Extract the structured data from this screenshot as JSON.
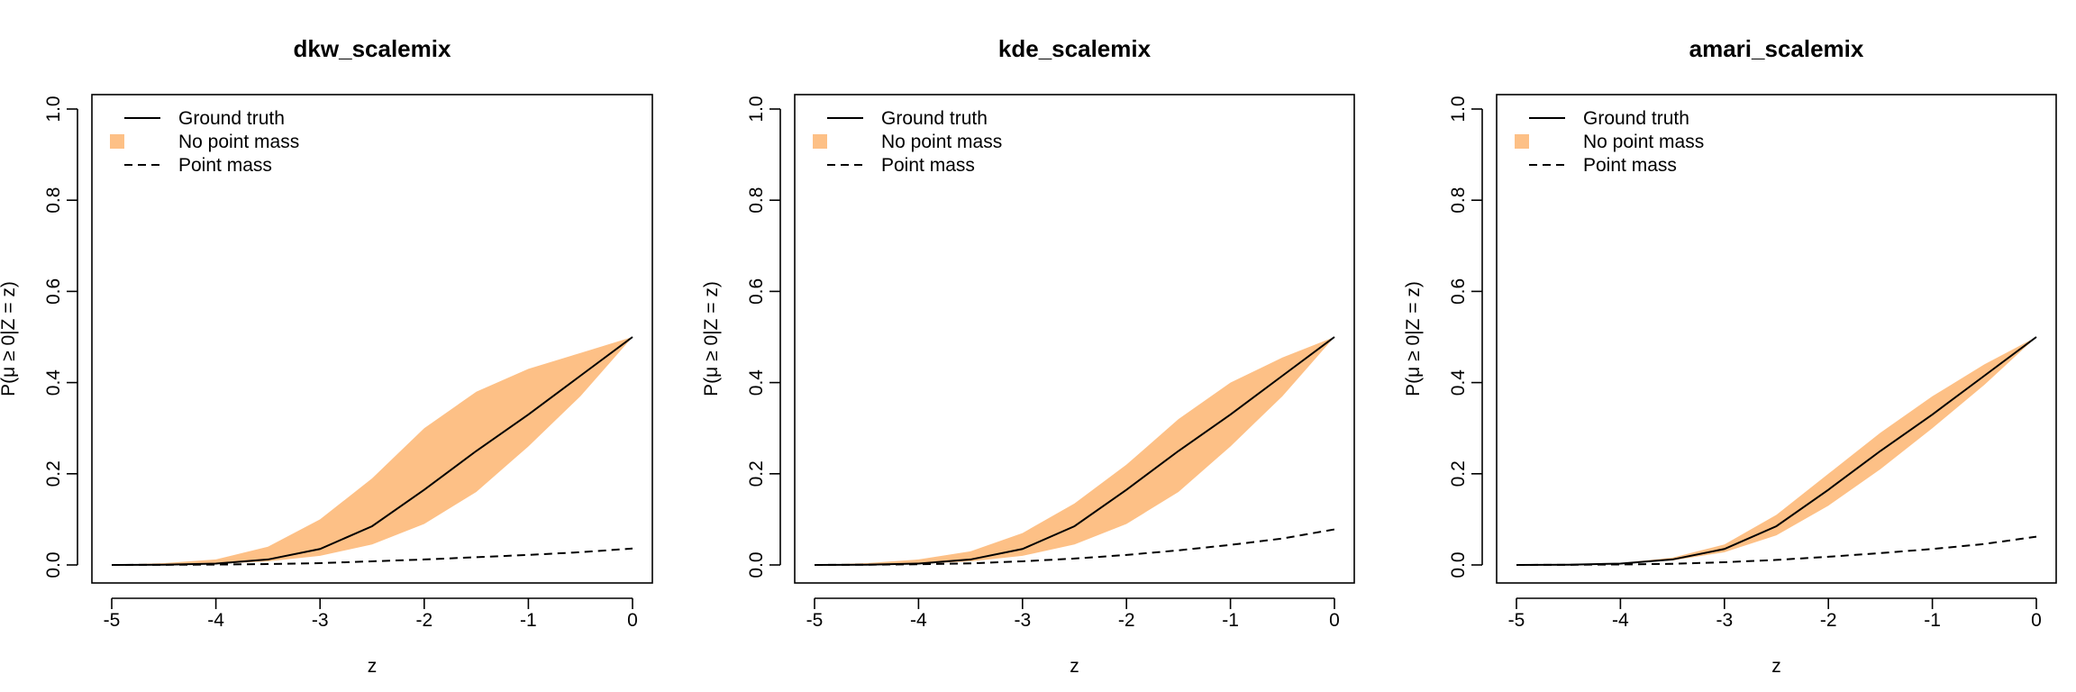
{
  "figure": {
    "colors": {
      "band": "#fdc086",
      "line": "#000000",
      "background": "#ffffff"
    },
    "legend_entries": [
      "Ground truth",
      "No point mass",
      "Point mass"
    ]
  },
  "chart_data": [
    {
      "type": "line",
      "title": "dkw_scalemix",
      "xlabel": "z",
      "ylabel": "P(μ ≥ 0|Z = z)",
      "xlim": [
        -5,
        0
      ],
      "ylim": [
        0,
        1
      ],
      "xticks": [
        -5,
        -4,
        -3,
        -2,
        -1,
        0
      ],
      "yticks": [
        "0.0",
        "0.2",
        "0.4",
        "0.6",
        "0.8",
        "1.0"
      ],
      "grid": false,
      "legend_position": "top-left",
      "x": [
        -5,
        -4.5,
        -4,
        -3.5,
        -3,
        -2.5,
        -2,
        -1.5,
        -1,
        -0.5,
        0
      ],
      "series": [
        {
          "name": "Ground truth",
          "style": "solid",
          "values": [
            0,
            0.0005,
            0.003,
            0.012,
            0.035,
            0.085,
            0.165,
            0.25,
            0.33,
            0.415,
            0.5
          ]
        },
        {
          "name": "No point mass",
          "style": "band",
          "lower": [
            0,
            0.0003,
            0.002,
            0.008,
            0.02,
            0.045,
            0.09,
            0.16,
            0.26,
            0.37,
            0.5
          ],
          "upper": [
            0,
            0.004,
            0.012,
            0.04,
            0.1,
            0.19,
            0.3,
            0.38,
            0.43,
            0.465,
            0.5
          ]
        },
        {
          "name": "Point mass",
          "style": "dashed",
          "values": [
            0,
            0.0003,
            0.0008,
            0.002,
            0.004,
            0.008,
            0.012,
            0.017,
            0.022,
            0.028,
            0.036
          ]
        }
      ]
    },
    {
      "type": "line",
      "title": "kde_scalemix",
      "xlabel": "z",
      "ylabel": "P(μ ≥ 0|Z = z)",
      "xlim": [
        -5,
        0
      ],
      "ylim": [
        0,
        1
      ],
      "xticks": [
        -5,
        -4,
        -3,
        -2,
        -1,
        0
      ],
      "yticks": [
        "0.0",
        "0.2",
        "0.4",
        "0.6",
        "0.8",
        "1.0"
      ],
      "grid": false,
      "legend_position": "top-left",
      "x": [
        -5,
        -4.5,
        -4,
        -3.5,
        -3,
        -2.5,
        -2,
        -1.5,
        -1,
        -0.5,
        0
      ],
      "series": [
        {
          "name": "Ground truth",
          "style": "solid",
          "values": [
            0,
            0.0005,
            0.003,
            0.012,
            0.035,
            0.085,
            0.165,
            0.25,
            0.33,
            0.415,
            0.5
          ]
        },
        {
          "name": "No point mass",
          "style": "band",
          "lower": [
            0,
            0.0003,
            0.002,
            0.008,
            0.02,
            0.045,
            0.09,
            0.16,
            0.26,
            0.37,
            0.5
          ],
          "upper": [
            0,
            0.004,
            0.012,
            0.03,
            0.07,
            0.135,
            0.22,
            0.32,
            0.4,
            0.455,
            0.5
          ]
        },
        {
          "name": "Point mass",
          "style": "dashed",
          "values": [
            0,
            0.0005,
            0.0015,
            0.0035,
            0.008,
            0.014,
            0.022,
            0.032,
            0.044,
            0.058,
            0.078
          ]
        }
      ]
    },
    {
      "type": "line",
      "title": "amari_scalemix",
      "xlabel": "z",
      "ylabel": "P(μ ≥ 0|Z = z)",
      "xlim": [
        -5,
        0
      ],
      "ylim": [
        0,
        1
      ],
      "xticks": [
        -5,
        -4,
        -3,
        -2,
        -1,
        0
      ],
      "yticks": [
        "0.0",
        "0.2",
        "0.4",
        "0.6",
        "0.8",
        "1.0"
      ],
      "grid": false,
      "legend_position": "top-left",
      "x": [
        -5,
        -4.5,
        -4,
        -3.5,
        -3,
        -2.5,
        -2,
        -1.5,
        -1,
        -0.5,
        0
      ],
      "series": [
        {
          "name": "Ground truth",
          "style": "solid",
          "values": [
            0,
            0.0005,
            0.003,
            0.012,
            0.035,
            0.085,
            0.165,
            0.25,
            0.33,
            0.415,
            0.5
          ]
        },
        {
          "name": "No point mass",
          "style": "band",
          "lower": [
            0,
            0.0004,
            0.0025,
            0.01,
            0.028,
            0.065,
            0.13,
            0.21,
            0.3,
            0.395,
            0.5
          ],
          "upper": [
            0,
            0.001,
            0.004,
            0.016,
            0.045,
            0.11,
            0.2,
            0.29,
            0.37,
            0.44,
            0.5
          ]
        },
        {
          "name": "Point mass",
          "style": "dashed",
          "values": [
            0,
            0.0003,
            0.001,
            0.0025,
            0.006,
            0.011,
            0.018,
            0.026,
            0.035,
            0.046,
            0.062
          ]
        }
      ]
    }
  ]
}
